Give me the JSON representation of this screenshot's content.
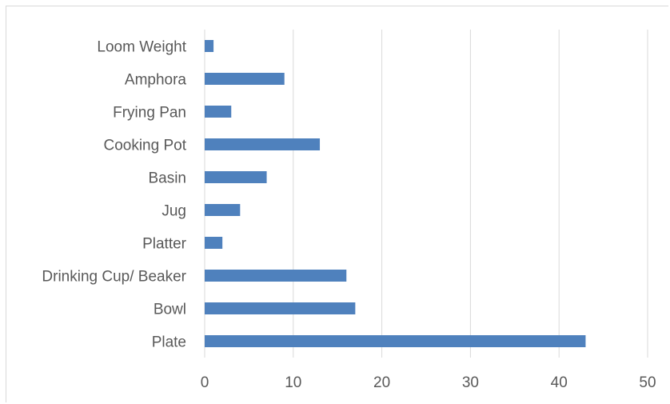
{
  "chart_data": {
    "type": "bar",
    "orientation": "horizontal",
    "categories": [
      "Plate",
      "Bowl",
      "Drinking Cup/ Beaker",
      "Platter",
      "Jug",
      "Basin",
      "Cooking Pot",
      "Frying Pan",
      "Amphora",
      "Loom Weight"
    ],
    "values": [
      43,
      17,
      16,
      2,
      4,
      7,
      13,
      3,
      9,
      1
    ],
    "xlim": [
      0,
      50
    ],
    "xticks": [
      "0",
      "10",
      "20",
      "30",
      "40",
      "50"
    ],
    "grid": true,
    "legend": "none",
    "bar_color": "#4f81bd",
    "grid_color": "#d9d9d9",
    "label_color": "#595959"
  }
}
